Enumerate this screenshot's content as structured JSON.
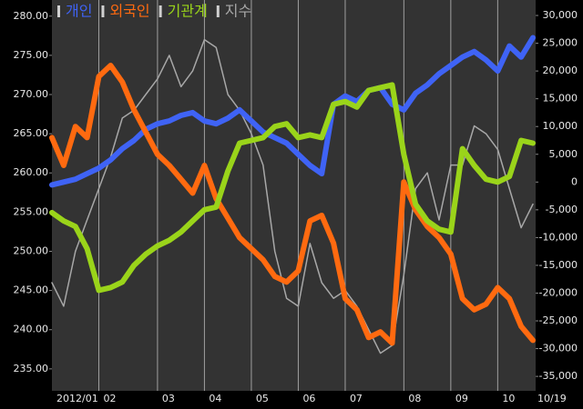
{
  "chart_data": {
    "type": "line",
    "categories": [
      "2012/01",
      null,
      null,
      null,
      "02",
      null,
      null,
      null,
      null,
      "03",
      null,
      null,
      null,
      "04",
      null,
      null,
      null,
      "05",
      null,
      null,
      null,
      "06",
      null,
      null,
      null,
      "07",
      null,
      null,
      null,
      null,
      "08",
      null,
      null,
      null,
      "09",
      null,
      null,
      null,
      "10",
      null,
      null,
      "10/19"
    ],
    "series": [
      {
        "name": "개인",
        "color": "#3f63f5",
        "axis": "y2",
        "values": [
          -500,
          0,
          500,
          1500,
          2500,
          4000,
          6000,
          7500,
          9500,
          10500,
          11000,
          12000,
          12500,
          11000,
          10500,
          11500,
          13000,
          11000,
          9000,
          8000,
          7000,
          5000,
          3000,
          1500,
          14000,
          15500,
          14500,
          16500,
          17000,
          14000,
          13000,
          16000,
          17500,
          19500,
          21000,
          22500,
          23500,
          22000,
          20000,
          24500,
          22500,
          26000
        ]
      },
      {
        "name": "외국인",
        "color": "#ff6a10",
        "axis": "y2",
        "values": [
          8000,
          3000,
          10000,
          8000,
          19000,
          21000,
          18000,
          13000,
          9000,
          5000,
          3000,
          500,
          -2000,
          3000,
          -3000,
          -6500,
          -10000,
          -12000,
          -14000,
          -17000,
          -18000,
          -16000,
          -7000,
          -6000,
          -11000,
          -21000,
          -23000,
          -28000,
          -27000,
          -29000,
          0,
          -5000,
          -8000,
          -10000,
          -13000,
          -21000,
          -23000,
          -22000,
          -19000,
          -21000,
          -26000,
          -28500
        ]
      },
      {
        "name": "기관계",
        "color": "#9ad41a",
        "axis": "y2",
        "values": [
          -5500,
          -7000,
          -8000,
          -12000,
          -19500,
          -19000,
          -18000,
          -15000,
          -13000,
          -11500,
          -10500,
          -9000,
          -7000,
          -5000,
          -4500,
          2000,
          7000,
          7500,
          8000,
          10000,
          10500,
          8000,
          8500,
          8000,
          14000,
          14500,
          13500,
          16500,
          17000,
          17500,
          5000,
          -4000,
          -7000,
          -8500,
          -9000,
          6000,
          3000,
          500,
          0,
          1000,
          7500,
          7000
        ]
      },
      {
        "name": "지수",
        "color": "#a8a8a8",
        "axis": "y",
        "values": [
          246,
          243,
          250,
          254,
          258,
          262,
          267,
          268,
          270,
          272,
          275,
          271,
          273,
          277,
          276,
          270,
          268,
          265,
          261,
          250,
          244,
          243,
          251,
          246,
          244,
          245,
          243,
          240,
          237,
          238,
          247,
          258,
          260,
          254,
          261,
          261,
          266,
          265,
          263,
          258,
          253,
          256
        ]
      }
    ],
    "ylim": [
      232.2,
      280.9
    ],
    "yticks": [
      {
        "value": 235,
        "label": "235.00"
      },
      {
        "value": 240,
        "label": "240.00"
      },
      {
        "value": 245,
        "label": "245.00"
      },
      {
        "value": 250,
        "label": "250.00"
      },
      {
        "value": 255,
        "label": "255.00"
      },
      {
        "value": 260,
        "label": "260.00"
      },
      {
        "value": 265,
        "label": "265.00"
      },
      {
        "value": 270,
        "label": "270.00"
      },
      {
        "value": 275,
        "label": "275.00"
      },
      {
        "value": 280,
        "label": "280.00"
      }
    ],
    "y2lim": [
      -37600,
      31150
    ],
    "y2ticks": [
      {
        "value": -35000,
        "label": "-35,000"
      },
      {
        "value": -30000,
        "label": "-30,000"
      },
      {
        "value": -25000,
        "label": "-25,000"
      },
      {
        "value": -20000,
        "label": "-20,000"
      },
      {
        "value": -15000,
        "label": "-15,000"
      },
      {
        "value": -10000,
        "label": "-10,000"
      },
      {
        "value": -5000,
        "label": "-5,000"
      },
      0,
      {
        "value": 5000,
        "label": "5,000"
      },
      {
        "value": 10000,
        "label": "10,000"
      },
      {
        "value": 15000,
        "label": "15,000"
      },
      {
        "value": 20000,
        "label": "20,000"
      },
      {
        "value": 25000,
        "label": "25,000"
      },
      {
        "value": 30000,
        "label": "30,000"
      }
    ],
    "legend": "top-left"
  }
}
